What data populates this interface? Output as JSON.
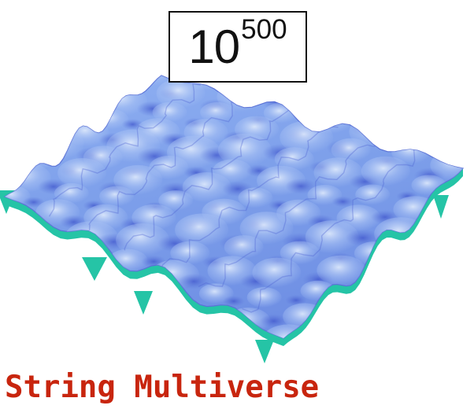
{
  "count_label": {
    "base": "10",
    "exponent": "500"
  },
  "caption": "String Multiverse",
  "colors": {
    "surface_light": "#b8d0f4",
    "surface_mid": "#7ea0ec",
    "surface_dark": "#4a5fd0",
    "underside": "#25c4a6",
    "caption": "#c8250e",
    "box_border": "#111111"
  }
}
